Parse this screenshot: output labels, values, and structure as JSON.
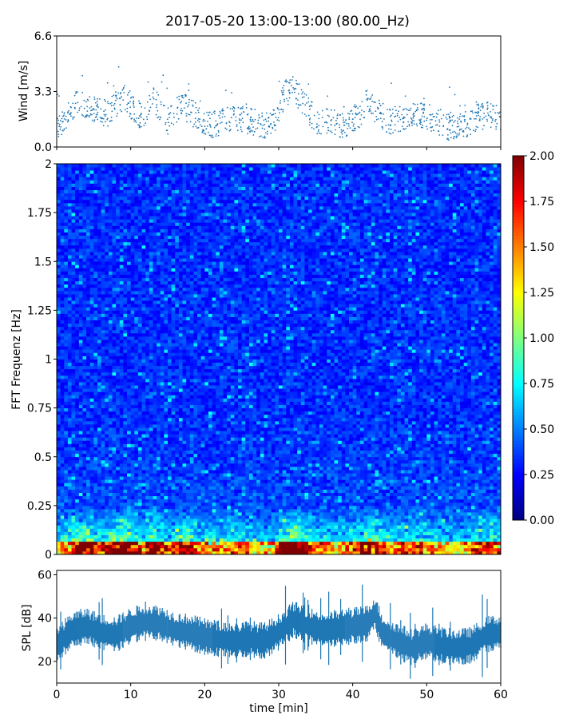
{
  "figure": {
    "title": "2017-05-20 13:00-13:00 (80.00_Hz)"
  },
  "chart_data": [
    {
      "type": "scatter",
      "ylabel": "Wind [m/s]",
      "xlim": [
        0,
        60
      ],
      "ylim": [
        0,
        6.6
      ],
      "y_ticks": [
        "0.0",
        "3.3",
        "6.6"
      ],
      "x_ticks": [
        "0",
        "10",
        "20",
        "30",
        "40",
        "50",
        "60"
      ],
      "series_color": "#1f77b4",
      "envelope": {
        "x": [
          0,
          2,
          3,
          5,
          7,
          9,
          10,
          12,
          13,
          15,
          17,
          19,
          21,
          23,
          25,
          27,
          29,
          31,
          32,
          33,
          35,
          37,
          39,
          41,
          42,
          43,
          45,
          47,
          49,
          51,
          53,
          55,
          57,
          59,
          60
        ],
        "y": [
          1.3,
          2.0,
          2.8,
          2.2,
          2.0,
          3.0,
          2.5,
          1.5,
          3.0,
          1.5,
          2.5,
          1.8,
          1.3,
          1.6,
          1.7,
          1.4,
          1.2,
          3.2,
          3.5,
          2.8,
          1.6,
          1.5,
          1.3,
          2.0,
          2.7,
          2.2,
          1.5,
          1.8,
          1.9,
          1.6,
          1.2,
          1.3,
          1.8,
          2.0,
          1.6
        ]
      }
    },
    {
      "type": "heatmap",
      "ylabel": "FFT Frequenz [Hz]",
      "xlim": [
        0,
        60
      ],
      "ylim": [
        0,
        2
      ],
      "y_ticks": [
        "0",
        "0.25",
        "0.5",
        "0.75",
        "1",
        "1.25",
        "1.5",
        "1.75",
        "2"
      ],
      "colorbar": {
        "range": [
          0,
          2
        ],
        "ticks": [
          "0.00",
          "0.25",
          "0.50",
          "0.75",
          "1.00",
          "1.25",
          "1.50",
          "1.75",
          "2.00"
        ],
        "colormap": "jet"
      }
    },
    {
      "type": "area",
      "ylabel": "SPL [dB]",
      "xlabel": "time [min]",
      "xlim": [
        0,
        60
      ],
      "ylim": [
        10,
        62
      ],
      "y_ticks": [
        "20",
        "40",
        "60"
      ],
      "x_ticks": [
        "0",
        "10",
        "20",
        "30",
        "40",
        "50",
        "60"
      ],
      "series_color": "#1f77b4",
      "envelope": {
        "x": [
          0,
          2,
          4,
          6,
          8,
          10,
          12,
          14,
          16,
          18,
          20,
          22,
          24,
          26,
          28,
          30,
          32,
          34,
          36,
          38,
          40,
          42,
          43,
          44,
          46,
          48,
          50,
          52,
          54,
          56,
          58,
          60
        ],
        "y": [
          27,
          34,
          36,
          33,
          32,
          36,
          38,
          37,
          34,
          33,
          31,
          30,
          29,
          30,
          29,
          33,
          39,
          36,
          34,
          35,
          36,
          37,
          42,
          33,
          29,
          26,
          29,
          27,
          26,
          27,
          32,
          33
        ]
      }
    }
  ]
}
